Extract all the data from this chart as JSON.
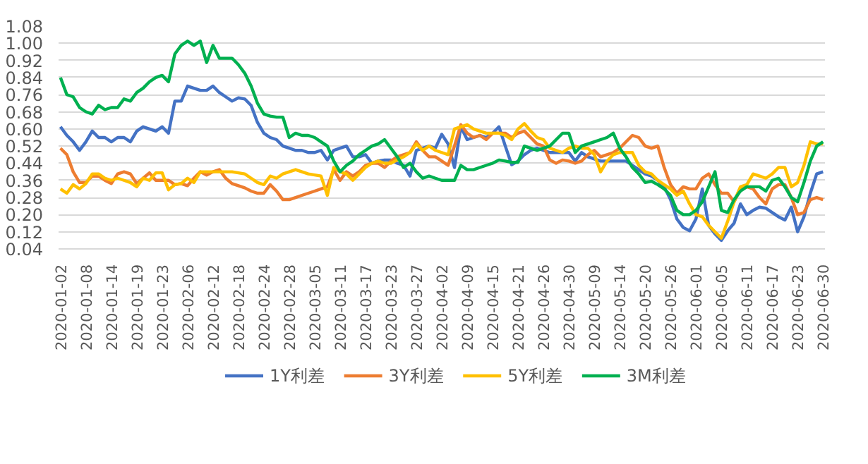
{
  "chart_data": {
    "type": "line",
    "categories": [
      "2020-01-02",
      null,
      null,
      null,
      "2020-01-08",
      null,
      null,
      null,
      "2020-01-14",
      null,
      null,
      null,
      "2020-01-19",
      null,
      null,
      null,
      "2020-01-23",
      null,
      null,
      null,
      "2020-02-06",
      null,
      null,
      null,
      "2020-02-12",
      null,
      null,
      null,
      "2020-02-18",
      null,
      null,
      null,
      "2020-02-24",
      null,
      null,
      null,
      "2020-02-28",
      null,
      null,
      null,
      "2020-03-05",
      null,
      null,
      null,
      "2020-03-11",
      null,
      null,
      null,
      "2020-03-17",
      null,
      null,
      null,
      "2020-03-23",
      null,
      null,
      null,
      "2020-03-27",
      null,
      null,
      null,
      "2020-04-02",
      null,
      null,
      null,
      "2020-04-09",
      null,
      null,
      null,
      "2020-04-15",
      null,
      null,
      null,
      "2020-04-21",
      null,
      null,
      null,
      "2020-04-26",
      null,
      null,
      null,
      "2020-04-30",
      null,
      null,
      null,
      "2020-05-09",
      null,
      null,
      null,
      "2020-05-14",
      null,
      null,
      null,
      "2020-05-20",
      null,
      null,
      null,
      "2020-05-26",
      null,
      null,
      null,
      "2020-06-01",
      null,
      null,
      null,
      "2020-06-05",
      null,
      null,
      null,
      "2020-06-11",
      null,
      null,
      null,
      "2020-06-17",
      null,
      null,
      null,
      "2020-06-23",
      null,
      null,
      null,
      "2020-06-30"
    ],
    "series": [
      {
        "name": "1Y利差",
        "color": "#4472c4",
        "values": [
          0.61,
          0.57,
          0.54,
          0.5,
          0.54,
          0.59,
          0.56,
          0.56,
          0.54,
          0.56,
          0.56,
          0.54,
          0.59,
          0.61,
          0.6,
          0.59,
          0.61,
          0.58,
          0.73,
          0.73,
          0.8,
          0.79,
          0.78,
          0.78,
          0.8,
          0.77,
          0.75,
          0.73,
          0.745,
          0.74,
          0.71,
          0.63,
          0.58,
          0.56,
          0.55,
          0.52,
          0.51,
          0.5,
          0.5,
          0.49,
          0.49,
          0.5,
          0.455,
          0.5,
          0.51,
          0.52,
          0.47,
          0.47,
          0.48,
          0.44,
          0.45,
          0.455,
          0.455,
          0.44,
          0.43,
          0.38,
          0.5,
          0.51,
          0.52,
          0.51,
          0.575,
          0.53,
          0.42,
          0.61,
          0.55,
          0.56,
          0.57,
          0.56,
          0.58,
          0.61,
          0.52,
          0.433,
          0.45,
          0.48,
          0.5,
          0.51,
          0.5,
          0.49,
          0.49,
          0.49,
          0.49,
          0.45,
          0.49,
          0.47,
          0.46,
          0.45,
          0.45,
          0.45,
          0.45,
          0.45,
          0.43,
          0.41,
          0.39,
          0.38,
          0.36,
          0.33,
          0.27,
          0.18,
          0.14,
          0.125,
          0.18,
          0.32,
          0.15,
          0.11,
          0.08,
          0.125,
          0.16,
          0.25,
          0.2,
          0.22,
          0.235,
          0.23,
          0.21,
          0.19,
          0.175,
          0.235,
          0.12,
          0.19,
          0.3,
          0.39,
          0.4
        ]
      },
      {
        "name": "3Y利差",
        "color": "#ed7d31",
        "values": [
          0.51,
          0.48,
          0.4,
          0.35,
          0.35,
          0.38,
          0.38,
          0.36,
          0.345,
          0.39,
          0.4,
          0.39,
          0.345,
          0.37,
          0.395,
          0.36,
          0.36,
          0.36,
          0.34,
          0.345,
          0.335,
          0.37,
          0.4,
          0.385,
          0.4,
          0.41,
          0.37,
          0.345,
          0.335,
          0.325,
          0.31,
          0.3,
          0.3,
          0.34,
          0.31,
          0.27,
          0.27,
          0.28,
          0.29,
          0.3,
          0.31,
          0.32,
          0.33,
          0.41,
          0.36,
          0.4,
          0.38,
          0.4,
          0.43,
          0.44,
          0.44,
          0.42,
          0.45,
          0.47,
          0.48,
          0.49,
          0.54,
          0.5,
          0.47,
          0.47,
          0.45,
          0.43,
          0.52,
          0.62,
          0.58,
          0.56,
          0.57,
          0.55,
          0.58,
          0.58,
          0.58,
          0.56,
          0.58,
          0.59,
          0.56,
          0.53,
          0.52,
          0.455,
          0.44,
          0.455,
          0.45,
          0.44,
          0.45,
          0.48,
          0.5,
          0.47,
          0.48,
          0.49,
          0.51,
          0.54,
          0.57,
          0.56,
          0.52,
          0.51,
          0.52,
          0.42,
          0.34,
          0.3,
          0.33,
          0.32,
          0.32,
          0.37,
          0.39,
          0.34,
          0.3,
          0.3,
          0.26,
          0.32,
          0.33,
          0.32,
          0.28,
          0.25,
          0.32,
          0.34,
          0.34,
          0.28,
          0.2,
          0.21,
          0.27,
          0.28,
          0.27
        ]
      },
      {
        "name": "5Y利差",
        "color": "#ffc000",
        "values": [
          0.32,
          0.3,
          0.34,
          0.32,
          0.345,
          0.39,
          0.39,
          0.37,
          0.36,
          0.37,
          0.36,
          0.35,
          0.33,
          0.37,
          0.36,
          0.395,
          0.395,
          0.316,
          0.34,
          0.345,
          0.37,
          0.35,
          0.4,
          0.4,
          0.4,
          0.4,
          0.4,
          0.4,
          0.395,
          0.39,
          0.37,
          0.35,
          0.34,
          0.38,
          0.37,
          0.39,
          0.4,
          0.41,
          0.4,
          0.39,
          0.385,
          0.38,
          0.29,
          0.42,
          0.4,
          0.39,
          0.36,
          0.39,
          0.42,
          0.44,
          0.45,
          0.44,
          0.44,
          0.455,
          0.47,
          0.49,
          0.53,
          0.5,
          0.52,
          0.5,
          0.49,
          0.48,
          0.6,
          0.61,
          0.62,
          0.6,
          0.59,
          0.58,
          0.58,
          0.58,
          0.57,
          0.55,
          0.6,
          0.625,
          0.59,
          0.56,
          0.55,
          0.51,
          0.5,
          0.49,
          0.51,
          0.52,
          0.51,
          0.51,
          0.48,
          0.4,
          0.45,
          0.48,
          0.49,
          0.49,
          0.49,
          0.43,
          0.4,
          0.39,
          0.36,
          0.34,
          0.32,
          0.29,
          0.31,
          0.25,
          0.2,
          0.19,
          0.15,
          0.12,
          0.09,
          0.17,
          0.26,
          0.33,
          0.34,
          0.39,
          0.38,
          0.37,
          0.39,
          0.42,
          0.42,
          0.33,
          0.35,
          0.43,
          0.54,
          0.53,
          0.53
        ]
      },
      {
        "name": "3M利差",
        "color": "#00b050",
        "values": [
          0.84,
          0.76,
          0.75,
          0.7,
          0.68,
          0.67,
          0.71,
          0.69,
          0.7,
          0.7,
          0.74,
          0.73,
          0.77,
          0.79,
          0.82,
          0.84,
          0.85,
          0.82,
          0.95,
          0.99,
          1.01,
          0.99,
          1.01,
          0.91,
          0.99,
          0.93,
          0.93,
          0.93,
          0.9,
          0.86,
          0.8,
          0.72,
          0.67,
          0.66,
          0.655,
          0.655,
          0.56,
          0.58,
          0.57,
          0.57,
          0.56,
          0.54,
          0.52,
          0.45,
          0.4,
          0.43,
          0.45,
          0.48,
          0.5,
          0.52,
          0.53,
          0.55,
          0.51,
          0.47,
          0.42,
          0.44,
          0.4,
          0.37,
          0.38,
          0.37,
          0.36,
          0.36,
          0.36,
          0.43,
          0.41,
          0.41,
          0.42,
          0.43,
          0.44,
          0.455,
          0.45,
          0.444,
          0.444,
          0.52,
          0.51,
          0.5,
          0.51,
          0.52,
          0.55,
          0.58,
          0.58,
          0.49,
          0.52,
          0.53,
          0.54,
          0.55,
          0.56,
          0.58,
          0.51,
          0.47,
          0.42,
          0.39,
          0.35,
          0.356,
          0.34,
          0.32,
          0.29,
          0.22,
          0.2,
          0.2,
          0.22,
          0.26,
          0.33,
          0.4,
          0.22,
          0.21,
          0.27,
          0.31,
          0.33,
          0.33,
          0.33,
          0.31,
          0.36,
          0.37,
          0.33,
          0.28,
          0.26,
          0.35,
          0.45,
          0.52,
          0.54
        ]
      }
    ],
    "ylim": [
      0.04,
      1.08
    ],
    "yticks": [
      {
        "value": 0.04,
        "label": "0.04"
      },
      {
        "value": 0.12,
        "label": "0.12"
      },
      {
        "value": 0.2,
        "label": "0.20"
      },
      {
        "value": 0.28,
        "label": "0.28"
      },
      {
        "value": 0.36,
        "label": "0.36"
      },
      {
        "value": 0.44,
        "label": "0.44"
      },
      {
        "value": 0.52,
        "label": "0.52"
      },
      {
        "value": 0.6,
        "label": "0.60"
      },
      {
        "value": 0.68,
        "label": "0.68"
      },
      {
        "value": 0.76,
        "label": "0.76"
      },
      {
        "value": 0.84,
        "label": "0.84"
      },
      {
        "value": 0.92,
        "label": "0.92"
      },
      {
        "value": 1.0,
        "label": "1.00"
      },
      {
        "value": 1.08,
        "label": "1.08"
      }
    ],
    "grid": "y",
    "legend": "bottom"
  }
}
